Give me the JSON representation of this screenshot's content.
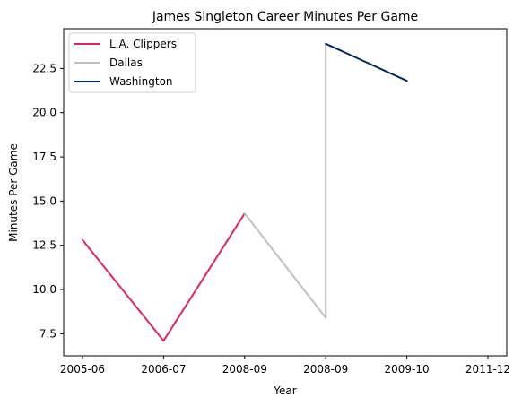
{
  "chart_data": {
    "type": "line",
    "title": "James Singleton  Career Minutes Per Game",
    "xlabel": "Year",
    "ylabel": "Minutes Per Game",
    "categories": [
      "2005-06",
      "2006-07",
      "2008-09",
      "2008-09",
      "2009-10",
      "2011-12"
    ],
    "ylim": [
      6.25,
      24.75
    ],
    "yticks": [
      "7.5",
      "10.0",
      "12.5",
      "15.0",
      "17.5",
      "20.0",
      "22.5"
    ],
    "grid": false,
    "legend_position": "top-left",
    "series": [
      {
        "name": "L.A. Clippers",
        "color": "#e0245e",
        "points": [
          [
            0,
            12.8
          ],
          [
            1,
            7.1
          ],
          [
            2,
            14.3
          ]
        ]
      },
      {
        "name": "Dallas",
        "color": "#c0c0c0",
        "points": [
          [
            2,
            14.3
          ],
          [
            3,
            8.4
          ],
          [
            3,
            23.9
          ]
        ]
      },
      {
        "name": "Washington",
        "color": "#002b5c",
        "points": [
          [
            3,
            23.9
          ],
          [
            4,
            21.8
          ]
        ]
      }
    ]
  }
}
